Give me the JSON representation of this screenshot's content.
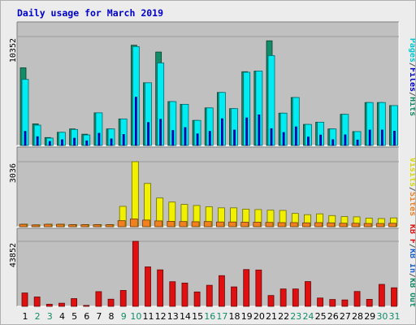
{
  "chart_data": [
    {
      "type": "bar",
      "title": "Daily usage for March 2019",
      "categories": [
        "1",
        "2",
        "3",
        "4",
        "5",
        "6",
        "7",
        "8",
        "9",
        "10",
        "11",
        "12",
        "13",
        "14",
        "15",
        "16",
        "17",
        "18",
        "19",
        "20",
        "21",
        "22",
        "23",
        "24",
        "25",
        "26",
        "27",
        "28",
        "29",
        "30",
        "31"
      ],
      "weekend_days": [
        "2",
        "3",
        "9",
        "10",
        "16",
        "17",
        "23",
        "24",
        "30",
        "31"
      ],
      "ymax_label": "10352",
      "ylim": [
        0,
        10352
      ],
      "legend": [
        "Pages",
        "Files",
        "Hits"
      ],
      "series": [
        {
          "name": "Hits",
          "color": "#138c67",
          "values": [
            7380,
            2050,
            750,
            1250,
            1570,
            1070,
            3100,
            1570,
            2520,
            9530,
            5960,
            8880,
            4170,
            3910,
            2380,
            3570,
            5040,
            3500,
            7010,
            7070,
            9950,
            3070,
            4560,
            2000,
            2210,
            1570,
            2960,
            1320,
            4080,
            4080,
            3790
          ]
        },
        {
          "name": "Files",
          "color": "#00ecf2",
          "values": [
            6280,
            1930,
            700,
            1250,
            1520,
            1000,
            3100,
            1570,
            2520,
            9400,
            5960,
            7840,
            4170,
            3910,
            2380,
            3570,
            5040,
            3500,
            6960,
            7070,
            8540,
            3070,
            4560,
            2000,
            2210,
            1570,
            2960,
            1320,
            4080,
            4080,
            3790
          ]
        },
        {
          "name": "Pages",
          "color": "#0000f0",
          "values": [
            1340,
            830,
            380,
            540,
            690,
            440,
            1160,
            620,
            1040,
            4590,
            2180,
            2490,
            1420,
            1700,
            1100,
            1340,
            2540,
            1470,
            2620,
            2910,
            1600,
            1230,
            1770,
            800,
            990,
            550,
            1010,
            520,
            1470,
            1470,
            1360
          ]
        }
      ]
    },
    {
      "type": "bar",
      "ymax_label": "3036",
      "ylim": [
        0,
        3036
      ],
      "legend": [
        "Visits",
        "Sites"
      ],
      "series": [
        {
          "name": "Visits",
          "color": "#f0f000",
          "values": [
            120,
            90,
            120,
            120,
            100,
            100,
            100,
            100,
            950,
            3036,
            2020,
            1340,
            1150,
            1040,
            990,
            930,
            880,
            880,
            820,
            800,
            770,
            760,
            620,
            560,
            600,
            520,
            470,
            460,
            400,
            380,
            410
          ]
        },
        {
          "name": "Sites",
          "color": "#f08020",
          "values": [
            110,
            80,
            110,
            110,
            90,
            90,
            90,
            90,
            280,
            360,
            310,
            270,
            250,
            240,
            230,
            240,
            220,
            220,
            210,
            210,
            200,
            190,
            190,
            180,
            190,
            180,
            160,
            160,
            150,
            150,
            160
          ]
        }
      ]
    },
    {
      "type": "bar",
      "ymax_label": "43852",
      "ylim": [
        0,
        43852
      ],
      "legend": [
        "KB F",
        "KB In",
        "KB Out"
      ],
      "series": [
        {
          "name": "KB F",
          "color": "#e01010",
          "values": [
            9000,
            6300,
            1400,
            2100,
            5200,
            600,
            9900,
            4800,
            10700,
            43852,
            26600,
            24600,
            16600,
            15700,
            9700,
            14200,
            20700,
            13100,
            24800,
            24500,
            7300,
            11700,
            11700,
            16700,
            5600,
            4600,
            4300,
            10000,
            4700,
            14800,
            12500
          ]
        }
      ]
    }
  ],
  "legend_labels": {
    "panel1": [
      {
        "text": "Pages",
        "color": "#00c8d2"
      },
      {
        "text": "/",
        "color": "#555555"
      },
      {
        "text": "Files",
        "color": "#0000cc"
      },
      {
        "text": "/",
        "color": "#555555"
      },
      {
        "text": "Hits",
        "color": "#138c67"
      }
    ],
    "panel2": [
      {
        "text": "Visits",
        "color": "#d8d800"
      },
      {
        "text": "/",
        "color": "#555555"
      },
      {
        "text": "Sites",
        "color": "#f08020"
      }
    ],
    "panel3": [
      {
        "text": "KB F",
        "color": "#e01010"
      },
      {
        "text": "/",
        "color": "#555555"
      },
      {
        "text": "KB In",
        "color": "#1a60d0"
      },
      {
        "text": "/",
        "color": "#555555"
      },
      {
        "text": "KB Out",
        "color": "#138c67"
      }
    ]
  }
}
